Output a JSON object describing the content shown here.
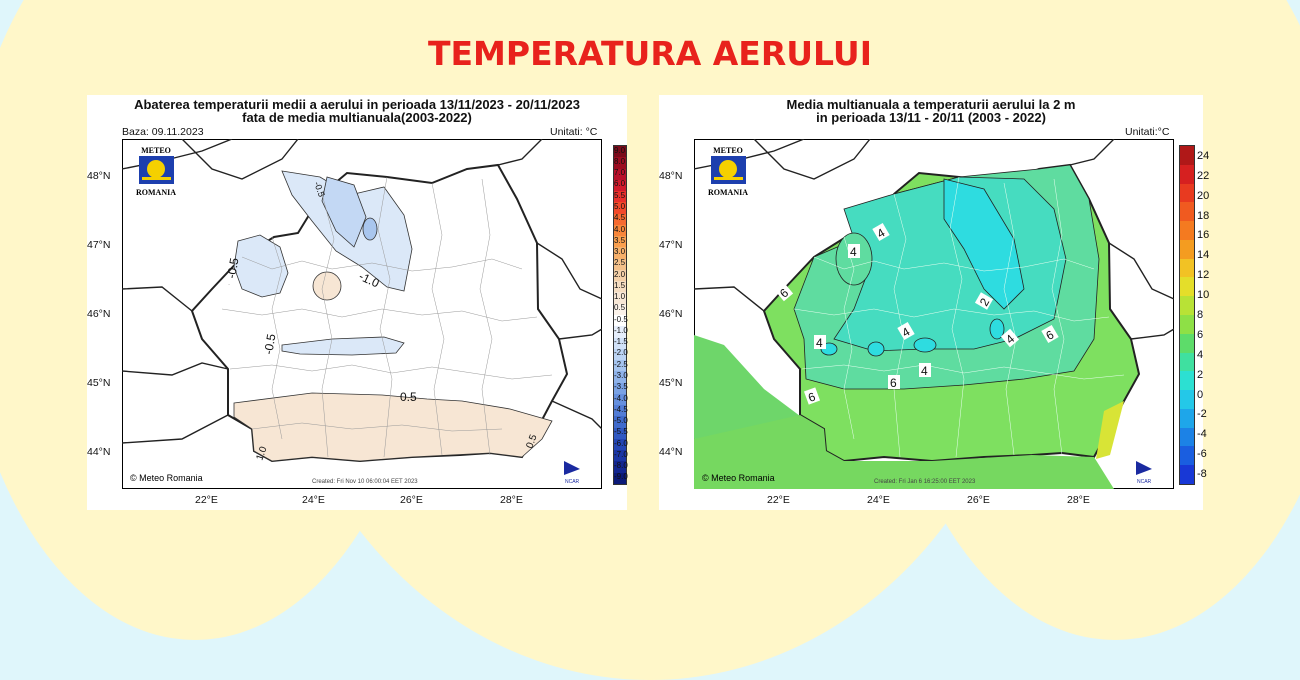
{
  "page_title": "TEMPERATURA AERULUI",
  "left_map": {
    "title_line1": "Abaterea temperaturii medii a aerului in perioada 13/11/2023 - 20/11/2023",
    "title_line2": "fata de media multianuala(2003-2022)",
    "base_date": "Baza: 09.11.2023",
    "units": "Unitati: °C",
    "logo_top": "METEO",
    "logo_bottom": "ROMANIA",
    "copyright": "© Meteo Romania",
    "created": "Created: Fri Nov 10 06:00:04 EET 2023",
    "ncar": "NCAR",
    "lat_ticks": [
      "48°N",
      "47°N",
      "46°N",
      "45°N",
      "44°N"
    ],
    "lon_ticks": [
      "22°E",
      "24°E",
      "26°E",
      "28°E"
    ],
    "contour_labels": [
      "-0.5",
      "-1.0",
      "-0.5",
      "0.5",
      "-0.5",
      "0.5",
      "1.0",
      "-0.5"
    ],
    "colorbar": {
      "labels": [
        "9.0",
        "8.0",
        "7.0",
        "6.0",
        "5.5",
        "5.0",
        "4.5",
        "4.0",
        "3.5",
        "3.0",
        "2.5",
        "2.0",
        "1.5",
        "1.0",
        "0.5",
        "-0.5",
        "-1.0",
        "-1.5",
        "-2.0",
        "-2.5",
        "-3.0",
        "-3.5",
        "-4.0",
        "-4.5",
        "-5.0",
        "-5.5",
        "-6.0",
        "-7.0",
        "-8.0",
        "-9.0"
      ],
      "colors": [
        "#7a0a1a",
        "#9b0c20",
        "#b8102a",
        "#d01a2a",
        "#e8302a",
        "#f24a2a",
        "#f66a30",
        "#f8863a",
        "#fa9f4e",
        "#f7b06a",
        "#f4c089",
        "#f4d0a8",
        "#f5ddc2",
        "#f7e7d6",
        "#fbf2e9",
        "#ffffff",
        "#e6eefb",
        "#d2e2f8",
        "#bcd4f4",
        "#a5c4ef",
        "#8fb3ea",
        "#7aa2e4",
        "#6690de",
        "#537dd6",
        "#406bcd",
        "#3159c2",
        "#2446b4",
        "#1a35a4",
        "#132690",
        "#0c1a78"
      ]
    }
  },
  "right_map": {
    "title_line1": "Media multianuala a temperaturii aerului la 2 m",
    "title_line2": "in perioada 13/11 - 20/11 (2003 - 2022)",
    "units": "Unitati:°C",
    "logo_top": "METEO",
    "logo_bottom": "ROMANIA",
    "copyright": "© Meteo Romania",
    "created": "Created: Fri Jan  6 16:25:00 EET 2023",
    "ncar": "NCAR",
    "lat_ticks": [
      "48°N",
      "47°N",
      "46°N",
      "45°N",
      "44°N"
    ],
    "lon_ticks": [
      "22°E",
      "24°E",
      "26°E",
      "28°E"
    ],
    "contour_labels": [
      "4",
      "4",
      "6",
      "2",
      "4",
      "4",
      "4",
      "4",
      "6",
      "6",
      "6"
    ],
    "colorbar": {
      "labels": [
        "24",
        "22",
        "20",
        "18",
        "16",
        "14",
        "12",
        "10",
        "8",
        "6",
        "4",
        "2",
        "0",
        "-2",
        "-4",
        "-6",
        "-8"
      ],
      "colors": [
        "#b01818",
        "#d62020",
        "#e83a20",
        "#f05a20",
        "#f47a20",
        "#f49c20",
        "#f2c224",
        "#e4de2a",
        "#b8e236",
        "#8ee046",
        "#5ddc6a",
        "#3fe0a0",
        "#2ce0d2",
        "#24c8e8",
        "#1ea6ea",
        "#1c82e6",
        "#1a5ee0",
        "#1838d6"
      ]
    }
  }
}
